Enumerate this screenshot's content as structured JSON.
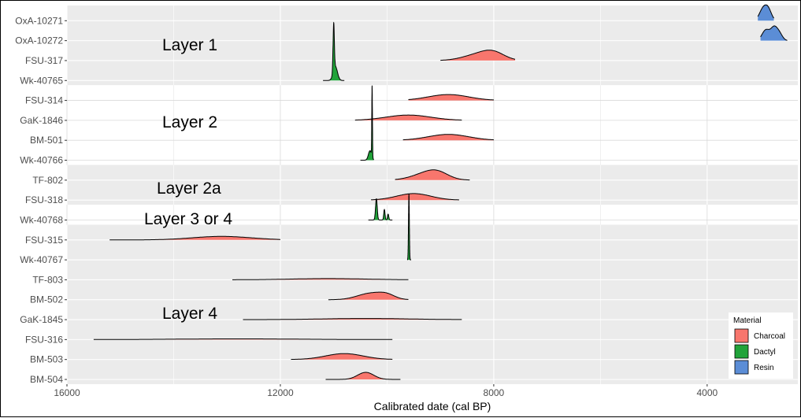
{
  "chart_data": {
    "type": "area",
    "xlabel": "Calibrated date (cal BP)",
    "ylabel": "",
    "x_reversed": true,
    "xlim": [
      16000,
      2300
    ],
    "x_ticks": [
      16000,
      12000,
      8000,
      4000
    ],
    "x_tick_labels": [
      "16000",
      "12000",
      "8000",
      "4000"
    ],
    "grid": true,
    "categories": [
      "OxA-10271",
      "OxA-10272",
      "FSU-317",
      "Wk-40765",
      "FSU-314",
      "GaK-1846",
      "BM-501",
      "Wk-40766",
      "TF-802",
      "FSU-318",
      "Wk-40768",
      "FSU-315",
      "Wk-40767",
      "TF-803",
      "BM-502",
      "GaK-1845",
      "FSU-316",
      "BM-503",
      "BM-504"
    ],
    "layers": [
      {
        "label": "Layer 1",
        "samples": [
          "OxA-10271",
          "OxA-10272",
          "FSU-317",
          "Wk-40765"
        ],
        "shaded": true
      },
      {
        "label": "Layer 2",
        "samples": [
          "FSU-314",
          "GaK-1846",
          "BM-501",
          "Wk-40766"
        ],
        "shaded": false
      },
      {
        "label": "Layer 2a",
        "samples": [
          "TF-802",
          "FSU-318"
        ],
        "shaded": true
      },
      {
        "label": "Layer 3 or 4",
        "samples": [
          "Wk-40768"
        ],
        "shaded": false
      },
      {
        "label": "Layer 4",
        "samples": [
          "FSU-315",
          "Wk-40767",
          "TF-803",
          "BM-502",
          "GaK-1845",
          "FSU-316",
          "BM-503",
          "BM-504"
        ],
        "shaded": true
      }
    ],
    "series": [
      {
        "sample": "OxA-10271",
        "material": "Resin",
        "start": 3050,
        "end": 2750,
        "peaks": [
          [
            2950,
            1.0,
            70
          ],
          [
            2850,
            0.8,
            60
          ]
        ]
      },
      {
        "sample": "OxA-10272",
        "material": "Resin",
        "start": 3000,
        "end": 2500,
        "peaks": [
          [
            2900,
            0.9,
            70
          ],
          [
            2750,
            1.0,
            60
          ],
          [
            2650,
            0.6,
            60
          ]
        ]
      },
      {
        "sample": "FSU-317",
        "material": "Charcoal",
        "start": 9000,
        "end": 7600,
        "peaks": [
          [
            8250,
            0.55,
            300
          ],
          [
            8000,
            0.45,
            200
          ]
        ]
      },
      {
        "sample": "Wk-40765",
        "material": "Dactyl",
        "start": 11200,
        "end": 10800,
        "peaks": [
          [
            11000,
            4.0,
            12
          ],
          [
            10970,
            1.2,
            40
          ]
        ]
      },
      {
        "sample": "FSU-314",
        "material": "Charcoal",
        "start": 9600,
        "end": 8000,
        "peaks": [
          [
            8850,
            0.5,
            380
          ]
        ]
      },
      {
        "sample": "GaK-1846",
        "material": "Charcoal",
        "start": 10600,
        "end": 8600,
        "peaks": [
          [
            9600,
            0.45,
            420
          ]
        ]
      },
      {
        "sample": "BM-501",
        "material": "Charcoal",
        "start": 9700,
        "end": 8000,
        "peaks": [
          [
            8850,
            0.5,
            380
          ]
        ]
      },
      {
        "sample": "Wk-40766",
        "material": "Dactyl",
        "start": 10500,
        "end": 10250,
        "peaks": [
          [
            10280,
            6.0,
            6
          ],
          [
            10320,
            0.8,
            30
          ]
        ]
      },
      {
        "sample": "TF-802",
        "material": "Charcoal",
        "start": 9850,
        "end": 8450,
        "peaks": [
          [
            9250,
            0.55,
            280
          ],
          [
            9050,
            0.4,
            200
          ]
        ]
      },
      {
        "sample": "FSU-318",
        "material": "Charcoal",
        "start": 10300,
        "end": 8650,
        "peaks": [
          [
            9500,
            0.55,
            320
          ]
        ]
      },
      {
        "sample": "Wk-40768",
        "material": "Dactyl",
        "start": 10350,
        "end": 9900,
        "peaks": [
          [
            10200,
            1.8,
            16
          ],
          [
            10050,
            0.9,
            12
          ],
          [
            9980,
            0.5,
            12
          ]
        ]
      },
      {
        "sample": "FSU-315",
        "material": "Charcoal",
        "start": 15200,
        "end": 12000,
        "peaks": [
          [
            13100,
            0.3,
            550
          ]
        ]
      },
      {
        "sample": "Wk-40767",
        "material": "Dactyl",
        "start": 9620,
        "end": 9550,
        "peaks": [
          [
            9590,
            5.6,
            8
          ]
        ]
      },
      {
        "sample": "TF-803",
        "material": "Charcoal",
        "start": 12900,
        "end": 9600,
        "peaks": [
          [
            11100,
            0.1,
            700
          ]
        ]
      },
      {
        "sample": "BM-502",
        "material": "Charcoal",
        "start": 11100,
        "end": 9600,
        "peaks": [
          [
            10300,
            0.55,
            250
          ],
          [
            10000,
            0.3,
            150
          ]
        ]
      },
      {
        "sample": "GaK-1845",
        "material": "Charcoal",
        "start": 12700,
        "end": 8600,
        "peaks": [
          [
            10400,
            0.1,
            800
          ]
        ]
      },
      {
        "sample": "FSU-316",
        "material": "Charcoal",
        "start": 15500,
        "end": 9900,
        "peaks": [
          [
            12800,
            0.06,
            1100
          ]
        ]
      },
      {
        "sample": "BM-503",
        "material": "Charcoal",
        "start": 11800,
        "end": 9900,
        "peaks": [
          [
            10800,
            0.5,
            350
          ]
        ]
      },
      {
        "sample": "BM-504",
        "material": "Charcoal",
        "start": 11150,
        "end": 9750,
        "peaks": [
          [
            10400,
            0.6,
            150
          ]
        ]
      }
    ],
    "legend": {
      "title": "Material",
      "placement": "bottom-right",
      "entries": [
        {
          "label": "Charcoal",
          "color": "#F8766D"
        },
        {
          "label": "Dactyl",
          "color": "#21A33A"
        },
        {
          "label": "Resin",
          "color": "#5B8DD6"
        }
      ]
    },
    "colors": {
      "panel_shaded": "#EBEBEB",
      "panel_plain": "#FFFFFF",
      "grid": "#D9D9D9",
      "curve": "#000000"
    }
  }
}
